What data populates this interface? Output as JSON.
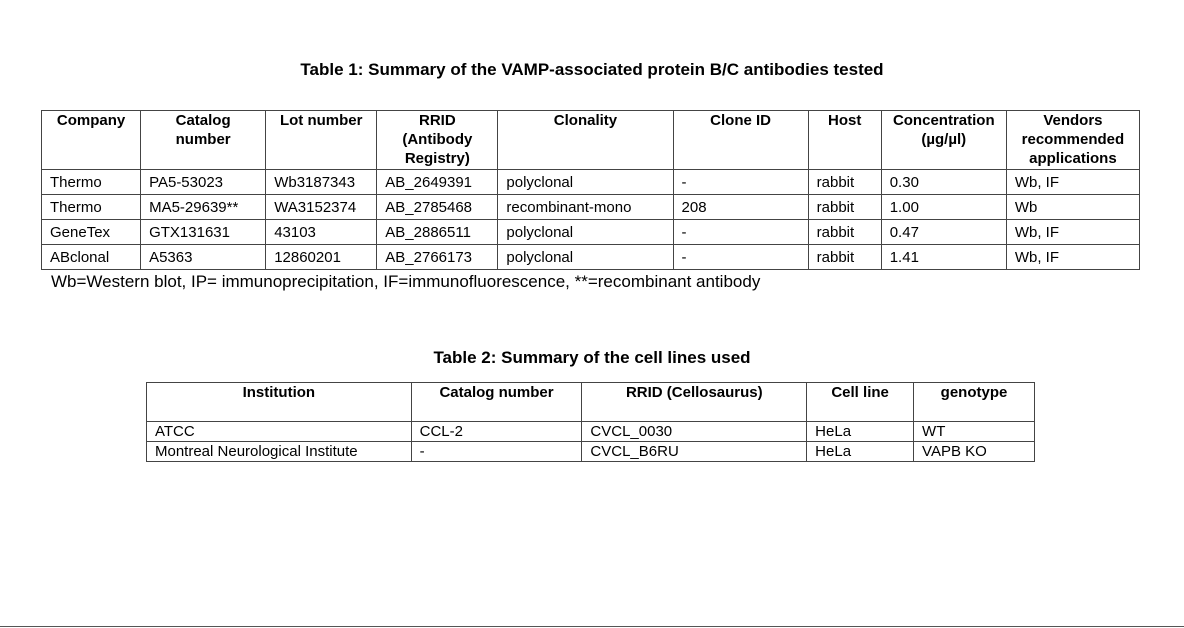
{
  "table1": {
    "title": "Table 1: Summary of the VAMP-associated protein B/C antibodies tested",
    "headers": [
      "Company",
      "Catalog number",
      "Lot number",
      "RRID (Antibody Registry)",
      "Clonality",
      "Clone ID",
      "Host",
      "Concentration (µg/µl)",
      "Vendors recommended applications"
    ],
    "rows": [
      [
        "Thermo",
        "PA5-53023",
        "Wb3187343",
        "AB_2649391",
        "polyclonal",
        "-",
        "rabbit",
        "0.30",
        "Wb, IF"
      ],
      [
        "Thermo",
        "MA5-29639**",
        "WA3152374",
        "AB_2785468",
        "recombinant-mono",
        "208",
        "rabbit",
        "1.00",
        "Wb"
      ],
      [
        "GeneTex",
        "GTX131631",
        "43103",
        "AB_2886511",
        "polyclonal",
        "-",
        "rabbit",
        "0.47",
        "Wb, IF"
      ],
      [
        "ABclonal",
        "A5363",
        "12860201",
        "AB_2766173",
        "polyclonal",
        "-",
        "rabbit",
        "1.41",
        "Wb, IF"
      ]
    ],
    "footnote": "Wb=Western blot, IP= immunoprecipitation, IF=immunofluorescence, **=recombinant antibody"
  },
  "table2": {
    "title": "Table 2: Summary of the cell lines used",
    "headers": [
      "Institution",
      "Catalog number",
      "RRID (Cellosaurus)",
      "Cell line",
      "genotype"
    ],
    "rows": [
      [
        "ATCC",
        "CCL-2",
        "CVCL_0030",
        "HeLa",
        "WT"
      ],
      [
        "Montreal Neurological Institute",
        "-",
        "CVCL_B6RU",
        "HeLa",
        "VAPB KO"
      ]
    ]
  }
}
